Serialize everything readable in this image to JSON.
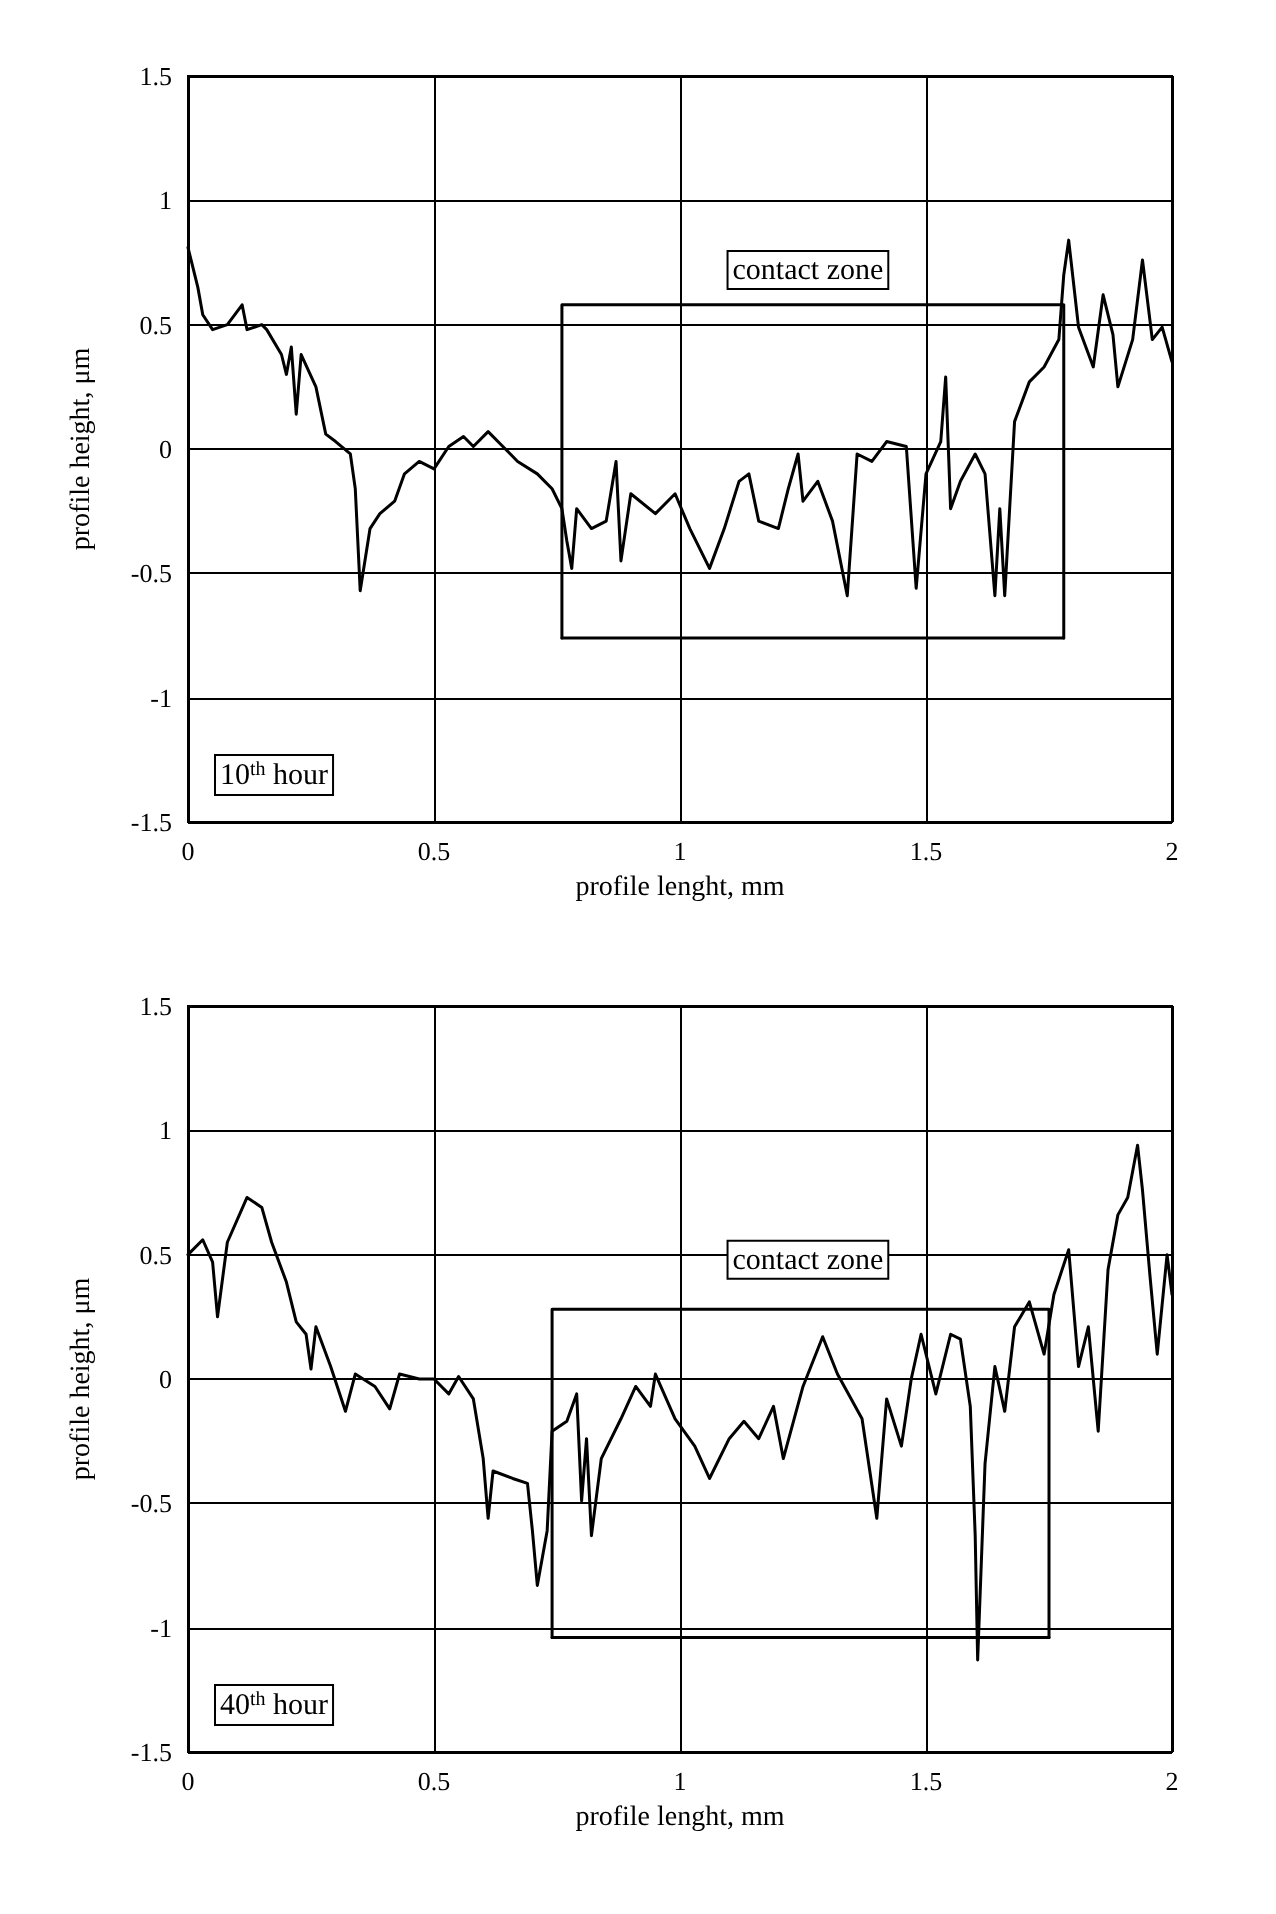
{
  "chart_data": [
    {
      "type": "line",
      "xlabel": "profile lenght, mm",
      "ylabel": "profile height, μm",
      "xlim": [
        0,
        2
      ],
      "ylim": [
        -1.5,
        1.5
      ],
      "xticks": [
        0,
        0.5,
        1,
        1.5,
        2
      ],
      "yticks": [
        -1.5,
        -1,
        -0.5,
        0,
        0.5,
        1,
        1.5
      ],
      "grid": true,
      "marker": "none",
      "line_style": "solid",
      "annotations": [
        "contact zone",
        "10$^{th}$ hour"
      ],
      "series": [
        {
          "color": "#000000",
          "x": [
            0,
            0.02,
            0.03,
            0.05,
            0.08,
            0.11,
            0.12,
            0.15,
            0.16,
            0.19,
            0.2,
            0.21,
            0.22,
            0.23,
            0.26,
            0.28,
            0.3,
            0.33,
            0.34,
            0.35,
            0.37,
            0.39,
            0.42,
            0.44,
            0.47,
            0.5,
            0.53,
            0.56,
            0.58,
            0.61,
            0.64,
            0.67,
            0.71,
            0.74,
            0.76,
            0.77,
            0.78,
            0.79,
            0.82,
            0.85,
            0.87,
            0.88,
            0.9,
            0.95,
            0.99,
            1.02,
            1.06,
            1.09,
            1.12,
            1.14,
            1.16,
            1.2,
            1.22,
            1.24,
            1.25,
            1.28,
            1.31,
            1.34,
            1.36,
            1.39,
            1.42,
            1.46,
            1.48,
            1.5,
            1.53,
            1.54,
            1.55,
            1.57,
            1.6,
            1.62,
            1.64,
            1.65,
            1.66,
            1.68,
            1.71,
            1.74,
            1.77,
            1.78,
            1.79,
            1.81,
            1.84,
            1.86,
            1.88,
            1.89,
            1.92,
            1.94,
            1.96,
            1.98,
            2
          ],
          "values": [
            0.81,
            0.65,
            0.54,
            0.48,
            0.5,
            0.58,
            0.48,
            0.5,
            0.48,
            0.38,
            0.3,
            0.41,
            0.14,
            0.38,
            0.25,
            0.06,
            0.03,
            -0.02,
            -0.16,
            -0.57,
            -0.32,
            -0.26,
            -0.21,
            -0.1,
            -0.05,
            -0.08,
            0.01,
            0.05,
            0.01,
            0.07,
            0.01,
            -0.05,
            -0.1,
            -0.16,
            -0.24,
            -0.37,
            -0.48,
            -0.24,
            -0.32,
            -0.29,
            -0.05,
            -0.45,
            -0.18,
            -0.26,
            -0.18,
            -0.32,
            -0.48,
            -0.32,
            -0.13,
            -0.1,
            -0.29,
            -0.32,
            -0.16,
            -0.02,
            -0.21,
            -0.13,
            -0.29,
            -0.59,
            -0.02,
            -0.05,
            0.03,
            0.01,
            -0.56,
            -0.1,
            0.03,
            0.29,
            -0.24,
            -0.13,
            -0.02,
            -0.1,
            -0.59,
            -0.24,
            -0.59,
            0.11,
            0.27,
            0.33,
            0.44,
            0.7,
            0.84,
            0.49,
            0.33,
            0.62,
            0.46,
            0.25,
            0.44,
            0.76,
            0.44,
            0.49,
            0.35
          ]
        },
        {
          "color": "#000000",
          "x": [
            0.76,
            0.76,
            1.78,
            1.78
          ],
          "values": [
            -0.76,
            0.58,
            0.58,
            -0.76
          ]
        },
        {
          "color": "#000000",
          "x": [
            0.76,
            1.78
          ],
          "values": [
            -0.76,
            -0.76
          ]
        }
      ]
    },
    {
      "type": "line",
      "xlabel": "profile lenght, mm",
      "ylabel": "profile height, μm",
      "xlim": [
        0,
        2
      ],
      "ylim": [
        -1.5,
        1.5
      ],
      "xticks": [
        0,
        0.5,
        1,
        1.5,
        2
      ],
      "yticks": [
        -1.5,
        -1,
        -0.5,
        0,
        0.5,
        1,
        1.5
      ],
      "grid": true,
      "marker": "none",
      "line_style": "solid",
      "annotations": [
        "contact zone",
        "40$^{th}$ hour"
      ],
      "series": [
        {
          "color": "#000000",
          "x": [
            0,
            0.03,
            0.05,
            0.06,
            0.08,
            0.12,
            0.15,
            0.17,
            0.2,
            0.22,
            0.24,
            0.25,
            0.26,
            0.29,
            0.32,
            0.34,
            0.38,
            0.41,
            0.43,
            0.47,
            0.5,
            0.53,
            0.55,
            0.58,
            0.6,
            0.61,
            0.62,
            0.66,
            0.69,
            0.7,
            0.71,
            0.73,
            0.74,
            0.77,
            0.79,
            0.8,
            0.81,
            0.82,
            0.84,
            0.88,
            0.91,
            0.94,
            0.95,
            0.99,
            1.03,
            1.06,
            1.1,
            1.13,
            1.16,
            1.19,
            1.21,
            1.25,
            1.29,
            1.32,
            1.37,
            1.4,
            1.42,
            1.45,
            1.47,
            1.49,
            1.52,
            1.55,
            1.57,
            1.59,
            1.6,
            1.605,
            1.62,
            1.64,
            1.66,
            1.68,
            1.71,
            1.74,
            1.76,
            1.79,
            1.81,
            1.83,
            1.85,
            1.87,
            1.89,
            1.91,
            1.93,
            1.94,
            1.955,
            1.97,
            1.99,
            2
          ],
          "values": [
            0.5,
            0.56,
            0.47,
            0.25,
            0.55,
            0.73,
            0.69,
            0.55,
            0.39,
            0.23,
            0.18,
            0.04,
            0.21,
            0.05,
            -0.13,
            0.02,
            -0.03,
            -0.12,
            0.02,
            0,
            0,
            -0.06,
            0.01,
            -0.08,
            -0.32,
            -0.56,
            -0.37,
            -0.4,
            -0.42,
            -0.61,
            -0.83,
            -0.61,
            -0.21,
            -0.17,
            -0.06,
            -0.49,
            -0.24,
            -0.63,
            -0.32,
            -0.16,
            -0.03,
            -0.11,
            0.02,
            -0.16,
            -0.27,
            -0.4,
            -0.24,
            -0.17,
            -0.24,
            -0.11,
            -0.32,
            -0.03,
            0.17,
            0.02,
            -0.16,
            -0.56,
            -0.08,
            -0.27,
            0,
            0.18,
            -0.06,
            0.18,
            0.16,
            -0.11,
            -0.63,
            -1.13,
            -0.34,
            0.05,
            -0.13,
            0.21,
            0.31,
            0.1,
            0.34,
            0.52,
            0.05,
            0.21,
            -0.21,
            0.44,
            0.66,
            0.73,
            0.94,
            0.76,
            0.42,
            0.1,
            0.5,
            0.34
          ]
        },
        {
          "color": "#000000",
          "x": [
            0.74,
            0.74,
            1.75,
            1.75
          ],
          "values": [
            -1.04,
            0.28,
            0.28,
            -1.04
          ]
        },
        {
          "color": "#000000",
          "x": [
            0.74,
            1.75
          ],
          "values": [
            -1.04,
            -1.04
          ]
        }
      ]
    }
  ]
}
